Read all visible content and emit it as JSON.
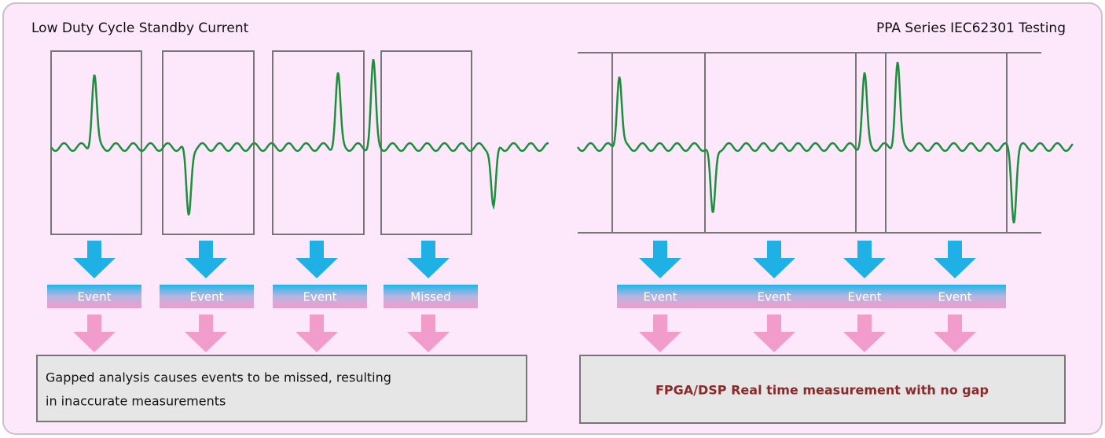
{
  "left": {
    "title": "Low Duty Cycle Standby Current",
    "events": [
      "Event",
      "Event",
      "Event",
      "Missed"
    ],
    "caption": [
      "Gapped analysis causes events to be missed, resulting",
      "in inaccurate measurements"
    ]
  },
  "right": {
    "title": "PPA Series IEC62301 Testing",
    "events": [
      "Event",
      "Event",
      "Event",
      "Event"
    ],
    "caption": "FPGA/DSP Real time measurement with no gap"
  }
}
